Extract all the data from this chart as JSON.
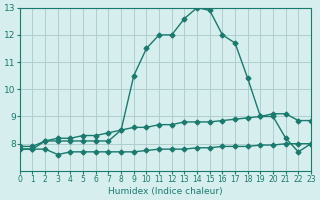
{
  "xlabel": "Humidex (Indice chaleur)",
  "bg_color": "#d6eeed",
  "grid_color": "#b0cece",
  "line_color": "#1a7a6e",
  "xlim": [
    0,
    23
  ],
  "ylim": [
    7,
    13
  ],
  "xticks": [
    0,
    1,
    2,
    3,
    4,
    5,
    6,
    7,
    8,
    9,
    10,
    11,
    12,
    13,
    14,
    15,
    16,
    17,
    18,
    19,
    20,
    21,
    22,
    23
  ],
  "yticks": [
    8,
    9,
    10,
    11,
    12,
    13
  ],
  "curve1_x": [
    0,
    1,
    2,
    3,
    4,
    5,
    6,
    7,
    8,
    9,
    10,
    11,
    12,
    13,
    14,
    15,
    16,
    17,
    18,
    19,
    20,
    21,
    22,
    23
  ],
  "curve1_y": [
    7.8,
    7.8,
    8.1,
    8.1,
    8.1,
    8.1,
    8.1,
    8.1,
    8.5,
    10.5,
    11.5,
    12.0,
    12.0,
    12.6,
    13.0,
    12.9,
    12.0,
    11.7,
    10.4,
    9.0,
    9.0,
    8.2,
    7.7,
    8.0
  ],
  "curve2_x": [
    0,
    1,
    2,
    3,
    4,
    5,
    6,
    7,
    8,
    9,
    10,
    11,
    12,
    13,
    14,
    15,
    16,
    17,
    18,
    19,
    20,
    21,
    22,
    23
  ],
  "curve2_y": [
    7.9,
    7.9,
    8.1,
    8.2,
    8.2,
    8.3,
    8.3,
    8.4,
    8.5,
    8.6,
    8.6,
    8.7,
    8.7,
    8.8,
    8.8,
    8.8,
    8.85,
    8.9,
    8.95,
    9.0,
    9.1,
    9.1,
    8.85,
    8.85
  ],
  "curve3_x": [
    0,
    1,
    2,
    3,
    4,
    5,
    6,
    7,
    8,
    9,
    10,
    11,
    12,
    13,
    14,
    15,
    16,
    17,
    18,
    19,
    20,
    21,
    22,
    23
  ],
  "curve3_y": [
    7.8,
    7.8,
    7.8,
    7.6,
    7.7,
    7.7,
    7.7,
    7.7,
    7.7,
    7.7,
    7.75,
    7.8,
    7.8,
    7.8,
    7.85,
    7.85,
    7.9,
    7.9,
    7.9,
    7.95,
    7.95,
    8.0,
    8.0,
    8.0
  ]
}
